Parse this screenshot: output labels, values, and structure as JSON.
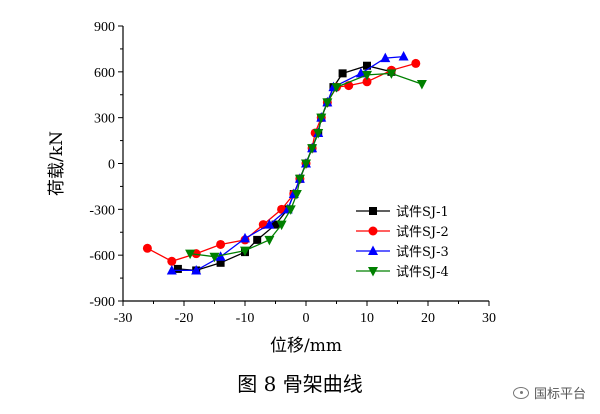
{
  "chart_data": {
    "type": "line",
    "title": "",
    "xlabel": "位移/mm",
    "ylabel": "荷载/kN",
    "xlim": [
      -30,
      30
    ],
    "ylim": [
      -900,
      900
    ],
    "xticks": [
      -30,
      -20,
      -10,
      0,
      10,
      20,
      30
    ],
    "yticks": [
      -900,
      -600,
      -300,
      0,
      300,
      600,
      900
    ],
    "legend_position": "lower-right",
    "series": [
      {
        "name": "试件SJ-1",
        "color": "#000000",
        "marker": "square",
        "points": [
          [
            -21,
            -690
          ],
          [
            -18,
            -700
          ],
          [
            -14,
            -650
          ],
          [
            -10,
            -580
          ],
          [
            -8,
            -500
          ],
          [
            -5,
            -400
          ],
          [
            -3,
            -300
          ],
          [
            -2,
            -200
          ],
          [
            -1,
            -100
          ],
          [
            0,
            0
          ],
          [
            1,
            100
          ],
          [
            2,
            200
          ],
          [
            2.5,
            300
          ],
          [
            3.5,
            400
          ],
          [
            4.5,
            500
          ],
          [
            6,
            590
          ],
          [
            10,
            640
          ],
          [
            14,
            600
          ]
        ]
      },
      {
        "name": "试件SJ-2",
        "color": "#ff0000",
        "marker": "circle",
        "points": [
          [
            -26,
            -555
          ],
          [
            -22,
            -640
          ],
          [
            -18,
            -590
          ],
          [
            -14,
            -530
          ],
          [
            -10,
            -500
          ],
          [
            -7,
            -400
          ],
          [
            -4,
            -300
          ],
          [
            -2,
            -200
          ],
          [
            -1,
            -100
          ],
          [
            0,
            0
          ],
          [
            1,
            100
          ],
          [
            1.5,
            200
          ],
          [
            2.5,
            300
          ],
          [
            3.5,
            400
          ],
          [
            5,
            500
          ],
          [
            7,
            510
          ],
          [
            10,
            535
          ],
          [
            14,
            610
          ],
          [
            18,
            655
          ]
        ]
      },
      {
        "name": "试件SJ-3",
        "color": "#0000ff",
        "marker": "triangle-up",
        "points": [
          [
            -22,
            -700
          ],
          [
            -18,
            -700
          ],
          [
            -14,
            -610
          ],
          [
            -10,
            -490
          ],
          [
            -6,
            -400
          ],
          [
            -3,
            -300
          ],
          [
            -2,
            -200
          ],
          [
            -1,
            -100
          ],
          [
            0,
            0
          ],
          [
            1,
            100
          ],
          [
            2,
            200
          ],
          [
            2.5,
            300
          ],
          [
            3.5,
            400
          ],
          [
            4.5,
            500
          ],
          [
            9,
            590
          ],
          [
            13,
            690
          ],
          [
            16,
            700
          ]
        ]
      },
      {
        "name": "试件SJ-4",
        "color": "#008000",
        "marker": "triangle-down",
        "points": [
          [
            -19,
            -590
          ],
          [
            -15,
            -610
          ],
          [
            -10,
            -570
          ],
          [
            -6,
            -500
          ],
          [
            -4,
            -400
          ],
          [
            -2.5,
            -300
          ],
          [
            -1.5,
            -200
          ],
          [
            -1,
            -100
          ],
          [
            0,
            0
          ],
          [
            1,
            100
          ],
          [
            2,
            200
          ],
          [
            2.5,
            300
          ],
          [
            3.5,
            400
          ],
          [
            5,
            500
          ],
          [
            10,
            580
          ],
          [
            14,
            590
          ],
          [
            19,
            520
          ]
        ]
      }
    ]
  },
  "caption": "图 8  骨架曲线",
  "watermark": "国标平台"
}
